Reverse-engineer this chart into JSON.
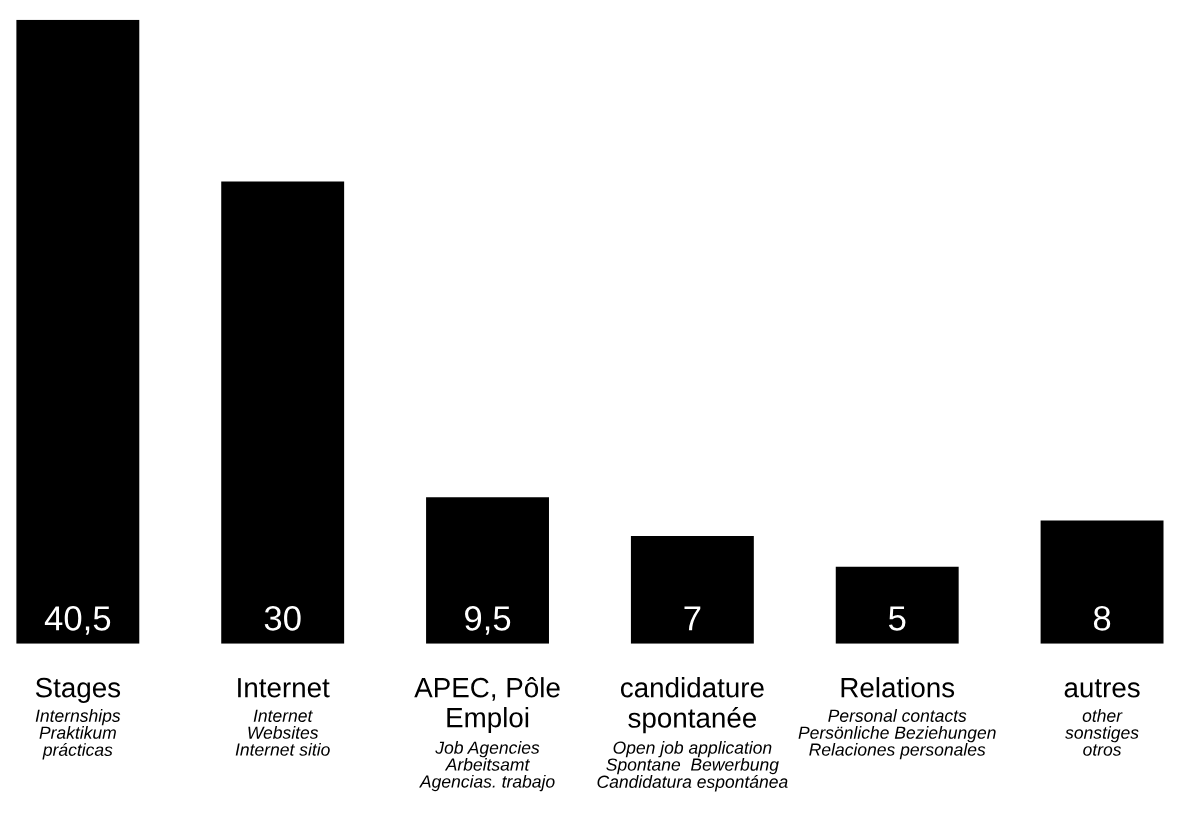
{
  "chart_data": {
    "type": "bar",
    "categories": [
      "Stages",
      "Internet",
      "APEC, Pôle\nEmploi",
      "candidature\nspontanée",
      "Relations",
      "autres"
    ],
    "values": [
      40.5,
      30,
      9.5,
      7,
      5,
      8
    ],
    "value_labels": [
      "40,5",
      "30",
      "9,5",
      "7",
      "5",
      "8"
    ],
    "color": "#000000",
    "annotations": [
      "Internships\nPraktikum\nprácticas",
      "Internet\nWebsites\nInternet sitio",
      "Job Agencies\nArbeitsamt\nAgencias. trabajo",
      "Open job application\nSpontane  Bewerbung\nCandidatura espontánea",
      "Personal contacts\nPersönliche Beziehungen\nRelaciones personales",
      "other\nsonstiges\notros"
    ],
    "grid": false
  }
}
